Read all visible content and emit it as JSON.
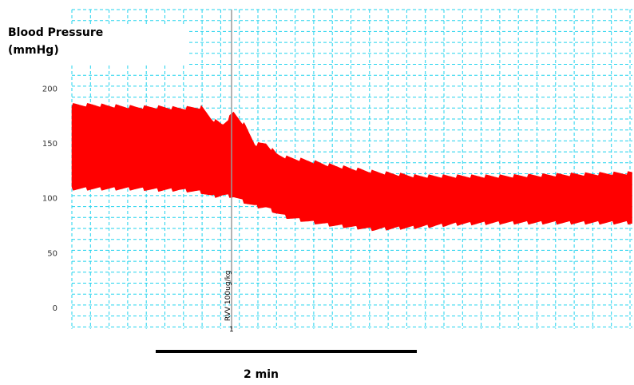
{
  "chart_data": {
    "type": "area",
    "ylabel_line1": "Blood Pressure",
    "ylabel_line2": "(mmHg)",
    "yticks": [
      0,
      50,
      100,
      150,
      200
    ],
    "ylim": [
      -20,
      270
    ],
    "grid": true,
    "series": [
      {
        "color": "#ff0000",
        "x_seconds": [
          0,
          10,
          20,
          30,
          40,
          50,
          60,
          65,
          70,
          75,
          80,
          85,
          90,
          95,
          100,
          110,
          120,
          140,
          160,
          180,
          200,
          220,
          240,
          260
        ],
        "systolic": [
          183,
          183,
          182,
          181,
          181,
          180,
          181,
          170,
          165,
          176,
          165,
          147,
          148,
          138,
          135,
          132,
          128,
          122,
          118,
          118,
          118,
          119,
          120,
          121
        ],
        "diastolic": [
          110,
          110,
          110,
          110,
          109,
          109,
          107,
          103,
          104,
          103,
          98,
          94,
          93,
          88,
          84,
          80,
          77,
          73,
          75,
          78,
          79,
          79,
          79,
          79
        ]
      }
    ],
    "annotation": {
      "label": "RVV 100ug/kg",
      "marker": "1",
      "x_seconds": 75
    },
    "scalebar": {
      "label": "2 min",
      "duration_seconds": 120
    }
  }
}
